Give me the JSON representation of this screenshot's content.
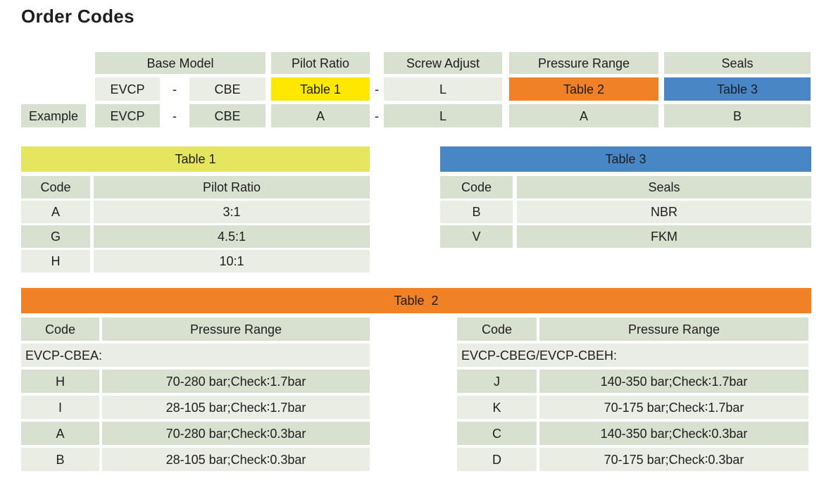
{
  "title": "Order Codes",
  "colors": {
    "cell_medium": "#d8e0d0",
    "cell_light": "#eaede3",
    "yellow_bright": "#ffe800",
    "yellow_green": "#e5e65e",
    "orange": "#f08126",
    "blue": "#4886c6",
    "text": "#1e1e1e"
  },
  "order_table": {
    "col_headers": {
      "base_model": "Base Model",
      "pilot_ratio": "Pilot Ratio",
      "screw_adjust": "Screw Adjust",
      "pressure_range": "Pressure Range",
      "seals": "Seals"
    },
    "model_row": {
      "prefix": "EVCP",
      "dash1": "-",
      "series": "CBE",
      "pilot": "Table 1",
      "dash2": "-",
      "screw": "L",
      "pressure": "Table 2",
      "seals": "Table 3"
    },
    "example_row": {
      "label": "Example",
      "prefix": "EVCP",
      "dash1": "-",
      "series": "CBE",
      "pilot": "A",
      "dash2": "-",
      "screw": "L",
      "pressure": "A",
      "seals": "B"
    }
  },
  "table1": {
    "title": "Table 1",
    "col_headers": [
      "Code",
      "Pilot Ratio"
    ],
    "rows": [
      [
        "A",
        "3:1"
      ],
      [
        "G",
        "4.5:1"
      ],
      [
        "H",
        "10:1"
      ]
    ]
  },
  "table3": {
    "title": "Table 3",
    "col_headers": [
      "Code",
      "Seals"
    ],
    "rows": [
      [
        "B",
        "NBR"
      ],
      [
        "V",
        "FKM"
      ]
    ]
  },
  "table2": {
    "title": "Table  2",
    "left": {
      "col_headers": [
        "Code",
        "Pressure Range"
      ],
      "group": "EVCP-CBEA:",
      "rows": [
        [
          "H",
          "70-280 bar;Check∶1.7bar"
        ],
        [
          "I",
          "28-105 bar;Check∶1.7bar"
        ],
        [
          "A",
          "70-280 bar;Check∶0.3bar"
        ],
        [
          "B",
          "28-105 bar;Check∶0.3bar"
        ]
      ]
    },
    "right": {
      "col_headers": [
        "Code",
        "Pressure Range"
      ],
      "group": "EVCP-CBEG/EVCP-CBEH:",
      "rows": [
        [
          "J",
          "140-350 bar;Check∶1.7bar"
        ],
        [
          "K",
          "70-175 bar;Check∶1.7bar"
        ],
        [
          "C",
          "140-350 bar;Check∶0.3bar"
        ],
        [
          "D",
          "70-175 bar;Check∶0.3bar"
        ]
      ]
    }
  }
}
